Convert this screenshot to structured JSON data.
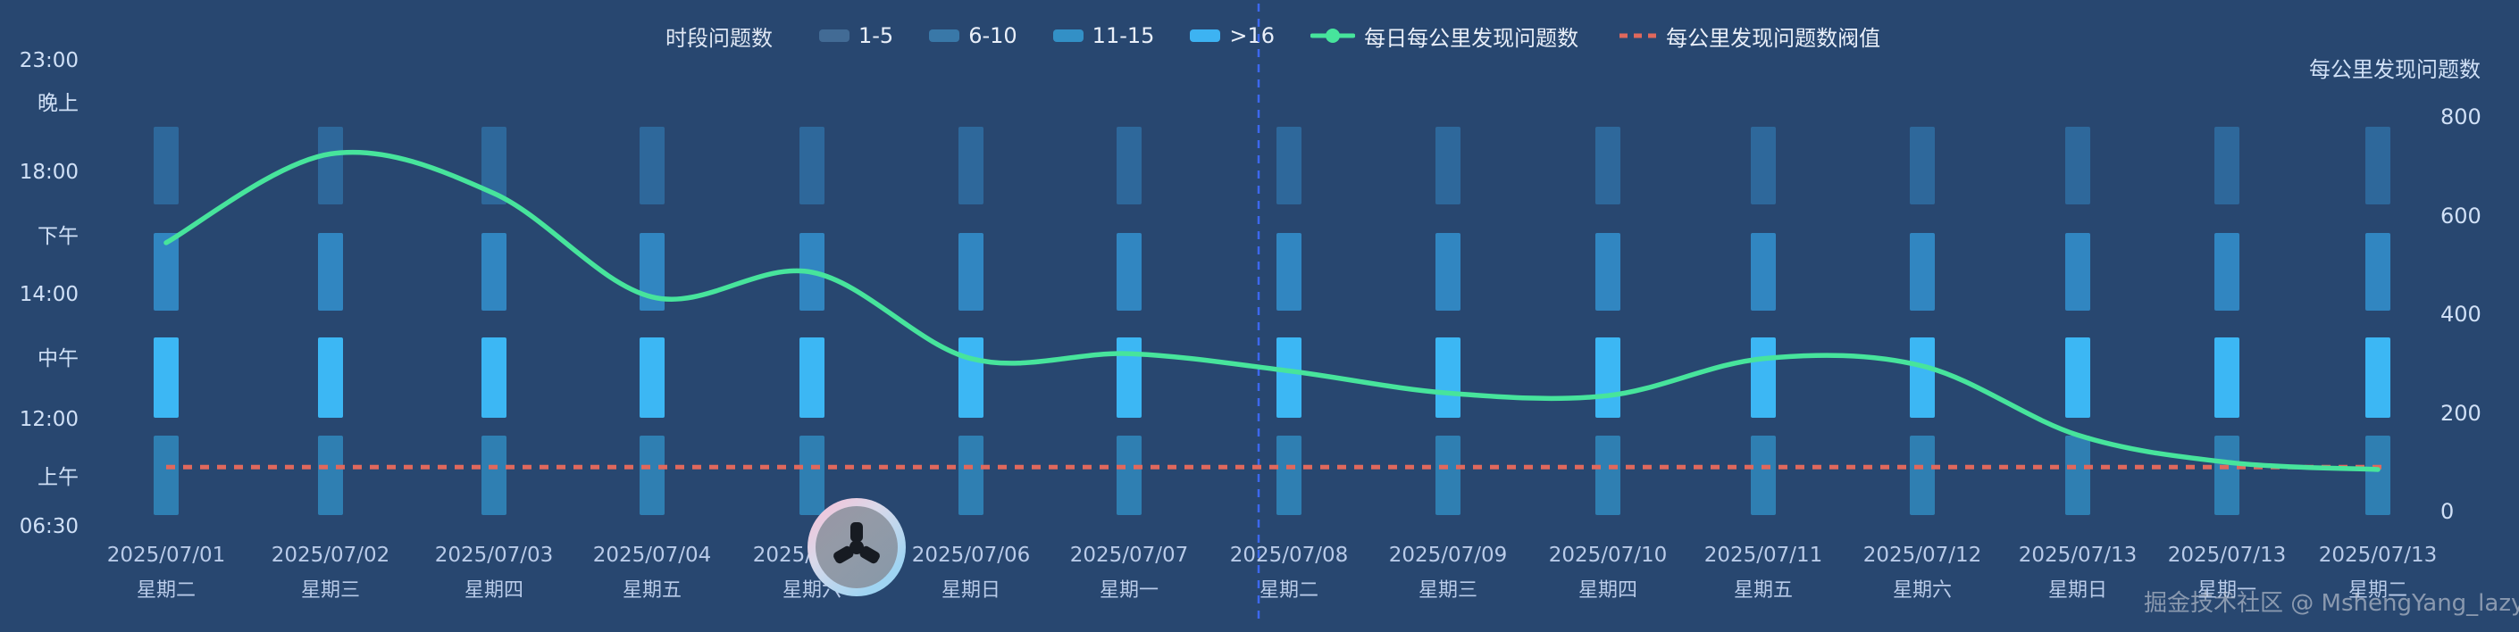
{
  "legend": {
    "group_title": "时段问题数",
    "buckets": [
      {
        "label": "1-5",
        "color": "#426b95"
      },
      {
        "label": "6-10",
        "color": "#3978a8"
      },
      {
        "label": "11-15",
        "color": "#3390c6"
      },
      {
        "label": ">16",
        "color": "#3db3f2"
      }
    ],
    "line_series_label": "每日每公里发现问题数",
    "threshold_label": "每公里发现问题数阀值"
  },
  "right_axis": {
    "title": "每公里发现问题数"
  },
  "watermark": {
    "text": "掘金技术社区 @ MshengYang_lazy"
  },
  "chart_data": {
    "type": "mixed",
    "subtypes": [
      "heat-bar-grid",
      "line",
      "threshold-line"
    ],
    "title": "",
    "categories": [
      "2025/07/01",
      "2025/07/02",
      "2025/07/03",
      "2025/07/04",
      "2025/07/05",
      "2025/07/06",
      "2025/07/07",
      "2025/07/08",
      "2025/07/09",
      "2025/07/10",
      "2025/07/11",
      "2025/07/12",
      "2025/07/13",
      "2025/07/13",
      "2025/07/13"
    ],
    "weekdays": [
      "星期二",
      "星期三",
      "星期四",
      "星期五",
      "星期六",
      "星期日",
      "星期一",
      "星期二",
      "星期三",
      "星期四",
      "星期五",
      "星期六",
      "星期日",
      "星期一",
      "星期二"
    ],
    "time_axis_labels": [
      "23:00",
      "晚上",
      "18:00",
      "下午",
      "14:00",
      "中午",
      "12:00",
      "上午",
      "06:30"
    ],
    "periods": [
      {
        "name": "晚上",
        "bucket": "6-10",
        "color": "#2e689b",
        "note": "same bucket for all 15 days"
      },
      {
        "name": "下午",
        "bucket": "11-15",
        "color": "#3186c1",
        "note": "same bucket for all 15 days"
      },
      {
        "name": "中午",
        "bucket": ">16",
        "color": "#3cb7f4",
        "note": "same bucket for all 15 days"
      },
      {
        "name": "上午",
        "bucket": "11-15",
        "color": "#2f7fb2",
        "note": "same bucket for all 15 days"
      }
    ],
    "series": [
      {
        "name": "每日每公里发现问题数",
        "type": "line",
        "color": "#47e49c",
        "values": [
          545,
          725,
          645,
          435,
          485,
          310,
          320,
          285,
          240,
          235,
          310,
          295,
          155,
          100,
          85
        ]
      },
      {
        "name": "每公里发现问题数阀值",
        "type": "threshold",
        "color": "#e0685c",
        "value": 90
      }
    ],
    "right_ylabel": "每公里发现问题数",
    "right_ylim": [
      0,
      800
    ],
    "right_ticks": [
      0,
      200,
      400,
      600,
      800
    ],
    "grid": false,
    "legend_position": "top"
  }
}
